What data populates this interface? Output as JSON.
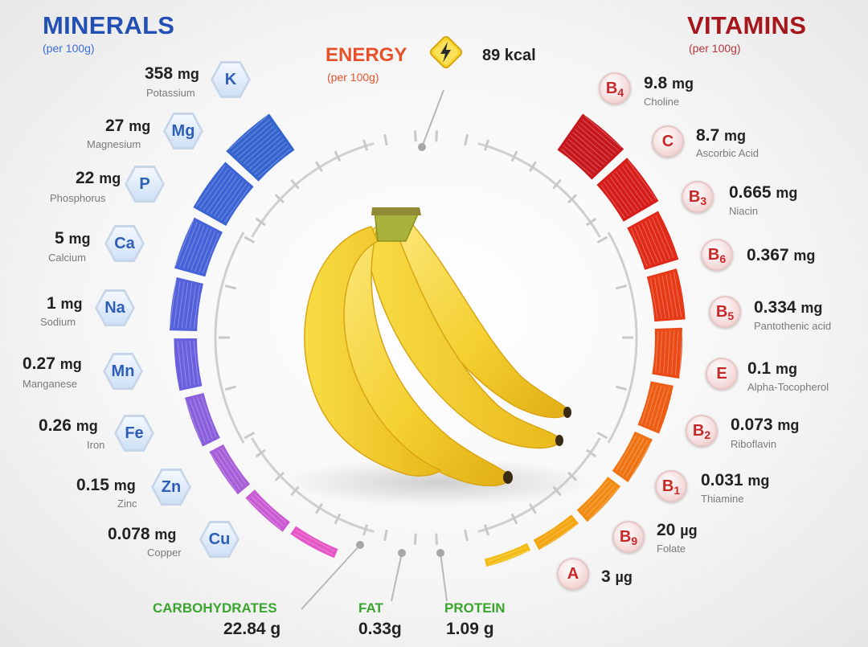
{
  "minerals": {
    "title": "MINERALS",
    "subtitle": "(per 100g)",
    "items": [
      {
        "symbol": "K",
        "amount": "358",
        "unit": "mg",
        "name": "Potassium"
      },
      {
        "symbol": "Mg",
        "amount": "27",
        "unit": "mg",
        "name": "Magnesium"
      },
      {
        "symbol": "P",
        "amount": "22",
        "unit": "mg",
        "name": "Phosphorus"
      },
      {
        "symbol": "Ca",
        "amount": "5",
        "unit": "mg",
        "name": "Calcium"
      },
      {
        "symbol": "Na",
        "amount": "1",
        "unit": "mg",
        "name": "Sodium"
      },
      {
        "symbol": "Mn",
        "amount": "0.27",
        "unit": "mg",
        "name": "Manganese"
      },
      {
        "symbol": "Fe",
        "amount": "0.26",
        "unit": "mg",
        "name": "Iron"
      },
      {
        "symbol": "Zn",
        "amount": "0.15",
        "unit": "mg",
        "name": "Zinc"
      },
      {
        "symbol": "Cu",
        "amount": "0.078",
        "unit": "mg",
        "name": "Copper"
      }
    ]
  },
  "vitamins": {
    "title": "VITAMINS",
    "subtitle": "(per 100g)",
    "items": [
      {
        "letter": "B",
        "sub": "4",
        "amount": "9.8",
        "unit": "mg",
        "name": "Choline"
      },
      {
        "letter": "C",
        "sub": "",
        "amount": "8.7",
        "unit": "mg",
        "name": "Ascorbic Acid"
      },
      {
        "letter": "B",
        "sub": "3",
        "amount": "0.665",
        "unit": "mg",
        "name": "Niacin"
      },
      {
        "letter": "B",
        "sub": "6",
        "amount": "0.367",
        "unit": "mg",
        "name": ""
      },
      {
        "letter": "B",
        "sub": "5",
        "amount": "0.334",
        "unit": "mg",
        "name": "Pantothenic acid"
      },
      {
        "letter": "E",
        "sub": "",
        "amount": "0.1",
        "unit": "mg",
        "name": "Alpha-Tocopherol"
      },
      {
        "letter": "B",
        "sub": "2",
        "amount": "0.073",
        "unit": "mg",
        "name": "Riboflavin"
      },
      {
        "letter": "B",
        "sub": "1",
        "amount": "0.031",
        "unit": "mg",
        "name": "Thiamine"
      },
      {
        "letter": "B",
        "sub": "9",
        "amount": "20",
        "unit": "µg",
        "name": "Folate"
      },
      {
        "letter": "A",
        "sub": "",
        "amount": "3",
        "unit": "µg",
        "name": ""
      }
    ]
  },
  "energy": {
    "title": "ENERGY",
    "subtitle": "(per 100g)",
    "value": "89 kcal",
    "icon": "lightning-icon"
  },
  "macros": [
    {
      "label": "CARBOHYDRATES",
      "value": "22.84 g"
    },
    {
      "label": "FAT",
      "value": "0.33g"
    },
    {
      "label": "PROTEIN",
      "value": "1.09 g"
    }
  ],
  "colors": {
    "minerals_title": "#2350b5",
    "vitamins_title": "#a5161d",
    "energy_title": "#e8502a",
    "macro_label": "#3aa52e",
    "banana": "#f5d63c"
  }
}
